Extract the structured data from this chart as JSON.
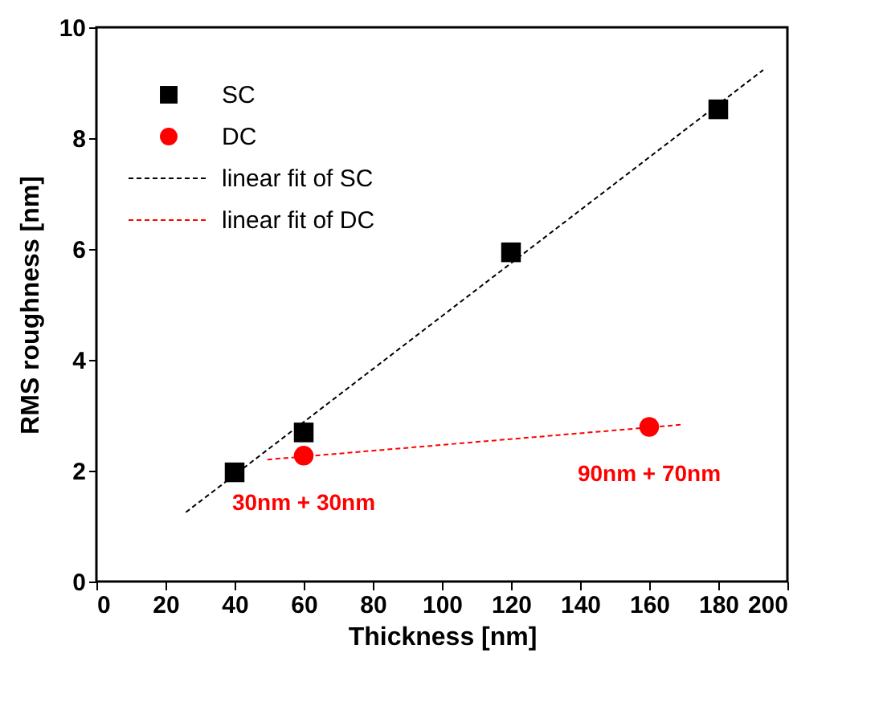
{
  "chart_data": {
    "type": "scatter",
    "xlabel": "Thickness [nm]",
    "ylabel": "RMS roughness [nm]",
    "xlim": [
      0,
      200
    ],
    "xticks": [
      0,
      20,
      40,
      60,
      80,
      100,
      120,
      140,
      160,
      180,
      200
    ],
    "ylim": [
      0,
      10
    ],
    "yticks": [
      0,
      2,
      4,
      6,
      8,
      10
    ],
    "grid": false,
    "legend": "top left",
    "series": [
      {
        "name": "SC",
        "marker": "square",
        "color": "#000000",
        "x": [
          40,
          60,
          120,
          180
        ],
        "values": [
          1.97,
          2.69,
          5.94,
          8.52
        ]
      },
      {
        "name": "DC",
        "marker": "circle",
        "color": "#ff0000",
        "x": [
          60,
          160
        ],
        "values": [
          2.27,
          2.79
        ]
      },
      {
        "name": "linear fit of SC",
        "type": "line",
        "line_style": "dashed",
        "color": "#000000",
        "x": [
          25.9,
          193
        ],
        "values": [
          1.25,
          9.23
        ]
      },
      {
        "name": "linear fit of DC",
        "type": "line",
        "line_style": "dashed",
        "color": "#ff0000",
        "x": [
          49.5,
          169.4
        ],
        "values": [
          2.2,
          2.83
        ]
      }
    ],
    "annotations": [
      {
        "text": "30nm + 30nm",
        "x": 60,
        "y": 2.27
      },
      {
        "text": "90nm + 70nm",
        "x": 160,
        "y": 2.79
      }
    ]
  }
}
